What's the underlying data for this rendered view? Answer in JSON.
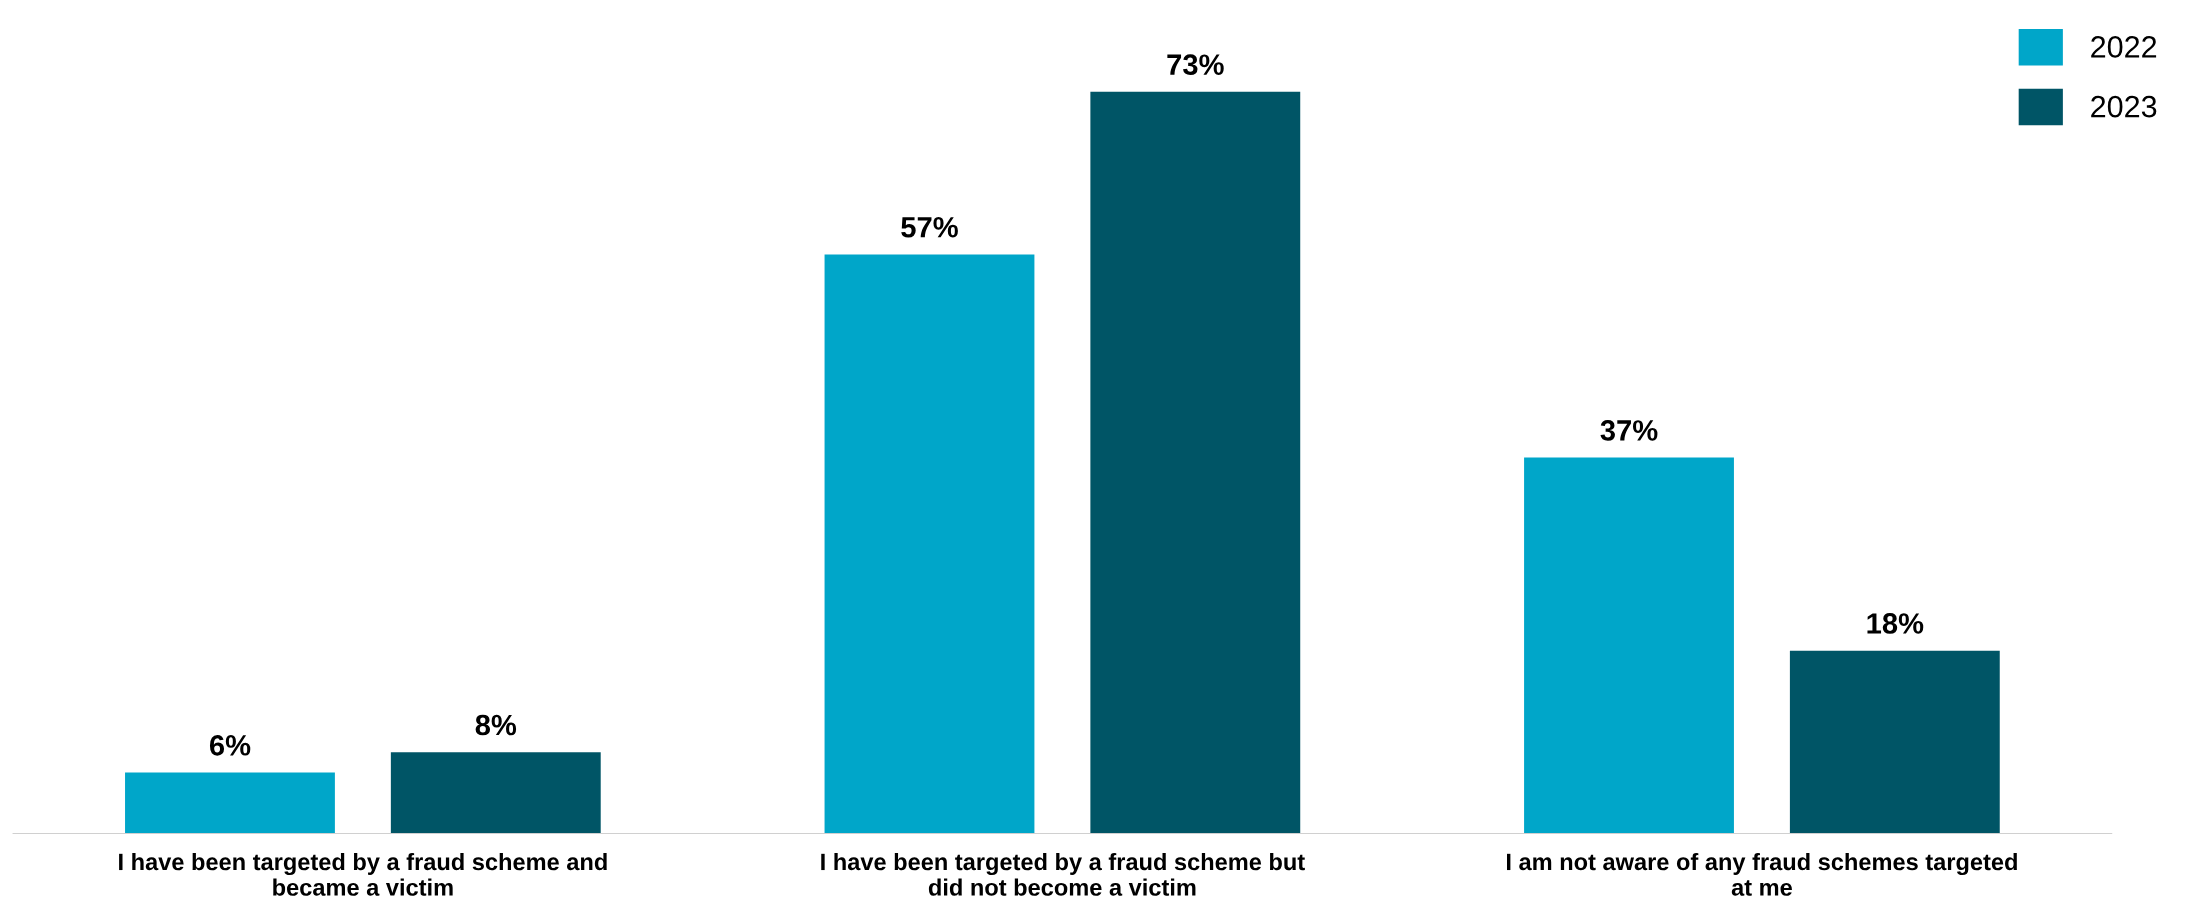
{
  "chart_data": {
    "type": "bar",
    "categories": [
      "I have been targeted by a fraud scheme and\nbecame a victim",
      "I have been targeted by a fraud scheme but\ndid not become a victim",
      "I am not aware of any fraud schemes targeted\nat me"
    ],
    "series": [
      {
        "name": "2022",
        "color": "#00a6c9",
        "values": [
          6,
          57,
          37
        ],
        "value_labels": [
          "6%",
          "57%",
          "37%"
        ]
      },
      {
        "name": "2023",
        "color": "#005566",
        "values": [
          8,
          73,
          18
        ],
        "value_labels": [
          "8%",
          "73%",
          "18%"
        ]
      }
    ],
    "legend": "top right",
    "grid": false
  }
}
